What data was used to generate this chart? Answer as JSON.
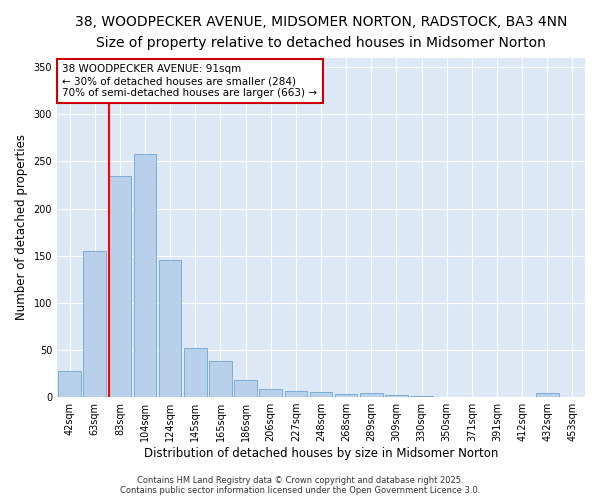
{
  "title": "38, WOODPECKER AVENUE, MIDSOMER NORTON, RADSTOCK, BA3 4NN",
  "subtitle": "Size of property relative to detached houses in Midsomer Norton",
  "xlabel": "Distribution of detached houses by size in Midsomer Norton",
  "ylabel": "Number of detached properties",
  "categories": [
    "42sqm",
    "63sqm",
    "83sqm",
    "104sqm",
    "124sqm",
    "145sqm",
    "165sqm",
    "186sqm",
    "206sqm",
    "227sqm",
    "248sqm",
    "268sqm",
    "289sqm",
    "309sqm",
    "330sqm",
    "350sqm",
    "371sqm",
    "391sqm",
    "412sqm",
    "432sqm",
    "453sqm"
  ],
  "values": [
    28,
    155,
    235,
    258,
    145,
    52,
    38,
    18,
    9,
    6,
    5,
    3,
    4,
    2,
    1,
    0,
    0,
    0,
    0,
    4,
    0
  ],
  "bar_color": "#b8d0ea",
  "bar_edge_color": "#7aacd4",
  "red_line_index": 2,
  "annotation_title": "38 WOODPECKER AVENUE: 91sqm",
  "annotation_line1": "← 30% of detached houses are smaller (284)",
  "annotation_line2": "70% of semi-detached houses are larger (663) →",
  "annotation_box_color": "#ffffff",
  "annotation_box_edge_color": "#cc0000",
  "ylim": [
    0,
    360
  ],
  "yticks": [
    0,
    50,
    100,
    150,
    200,
    250,
    300,
    350
  ],
  "footer1": "Contains HM Land Registry data © Crown copyright and database right 2025.",
  "footer2": "Contains public sector information licensed under the Open Government Licence 3.0.",
  "fig_bg_color": "#ffffff",
  "plot_bg_color": "#dce8f5",
  "title_fontsize": 10,
  "subtitle_fontsize": 9,
  "tick_fontsize": 7,
  "label_fontsize": 8.5,
  "annotation_fontsize": 7.5,
  "footer_fontsize": 6
}
